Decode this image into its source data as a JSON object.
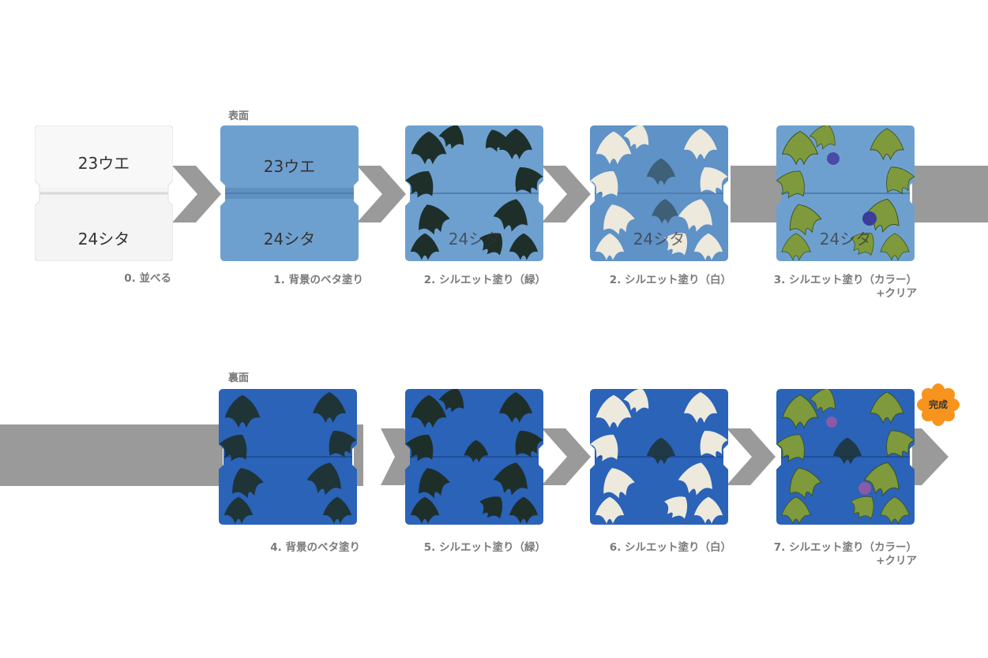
{
  "sections": {
    "front": "表面",
    "back": "裏面"
  },
  "tile_texts": {
    "top": "23ウエ",
    "bottom": "24シタ"
  },
  "steps_row1": [
    {
      "id": "s0",
      "label": "0. 並べる"
    },
    {
      "id": "s1",
      "label": "1. 背景のベタ塗り"
    },
    {
      "id": "s2g",
      "label": "2. シルエット塗り（緑）"
    },
    {
      "id": "s2w",
      "label": "2. シルエット塗り（白）"
    },
    {
      "id": "s3",
      "label": "3. シルエット塗り（カラー）",
      "label2": "+クリア"
    }
  ],
  "steps_row2": [
    {
      "id": "s4",
      "label": "4. 背景のベタ塗り"
    },
    {
      "id": "s5",
      "label": "5. シルエット塗り（緑）"
    },
    {
      "id": "s6",
      "label": "6. シルエット塗り（白）"
    },
    {
      "id": "s7",
      "label": "7. シルエット塗り（カラー）",
      "label2": "+クリア"
    }
  ],
  "badge": {
    "label": "完成",
    "color": "#f7941d"
  },
  "colors": {
    "arrow": "#9a9a9a",
    "front_bg": "#6ea0cf",
    "back_bg": "#2a63b8",
    "leaf_dark": "#1e2f2a",
    "leaf_white": "#ede9dc",
    "leaf_green": "#7e9a3c"
  }
}
